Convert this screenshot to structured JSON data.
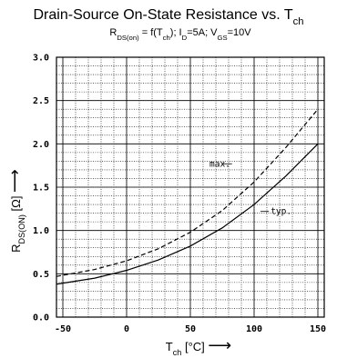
{
  "chart_data": {
    "type": "line",
    "title": {
      "main": "Drain-Source On-State Resistance vs. T",
      "main_sub": "ch"
    },
    "subtitle": {
      "parts": [
        {
          "t": "R"
        },
        {
          "t": "DS(on)",
          "sub": true
        },
        {
          "t": " = f(T"
        },
        {
          "t": "ch",
          "sub": true
        },
        {
          "t": "); I"
        },
        {
          "t": "D",
          "sub": true
        },
        {
          "t": "=5A; V"
        },
        {
          "t": "GS",
          "sub": true
        },
        {
          "t": "=10V"
        }
      ]
    },
    "xlabel": {
      "base": "T",
      "sub": "ch",
      "rest": " [°C]",
      "arrow": "⟶"
    },
    "ylabel": {
      "base": "R",
      "sub": "DS(ON)",
      "rest": " [Ω]",
      "arrow": "⟶"
    },
    "xlim": [
      -55,
      155
    ],
    "ylim": [
      0,
      3.0
    ],
    "xticks": [
      -50,
      0,
      50,
      100,
      150
    ],
    "xtick_labels": [
      "-50",
      "0",
      "50",
      "100",
      "150"
    ],
    "yticks": [
      0.0,
      0.5,
      1.0,
      1.5,
      2.0,
      2.5,
      3.0
    ],
    "ytick_labels": [
      "0.0",
      "0.5",
      "1.0",
      "1.5",
      "2.0",
      "2.5",
      "3.0"
    ],
    "grid": true,
    "series": [
      {
        "name": "max.",
        "style": "dashed",
        "x": [
          -55,
          -25,
          0,
          25,
          50,
          75,
          100,
          125,
          150
        ],
        "y": [
          0.47,
          0.55,
          0.65,
          0.79,
          0.98,
          1.23,
          1.56,
          1.96,
          2.4
        ]
      },
      {
        "name": "typ.",
        "style": "solid",
        "x": [
          -55,
          -25,
          0,
          25,
          50,
          75,
          100,
          125,
          150
        ],
        "y": [
          0.38,
          0.45,
          0.54,
          0.66,
          0.82,
          1.03,
          1.3,
          1.63,
          2.0
        ]
      }
    ],
    "annotations": [
      {
        "text": "max.",
        "x": 65,
        "y": 1.77,
        "leader_to": [
          75,
          1.77
        ]
      },
      {
        "text": "typ.",
        "x": 113,
        "y": 1.22,
        "leader_to": [
          105,
          1.22
        ]
      }
    ]
  }
}
